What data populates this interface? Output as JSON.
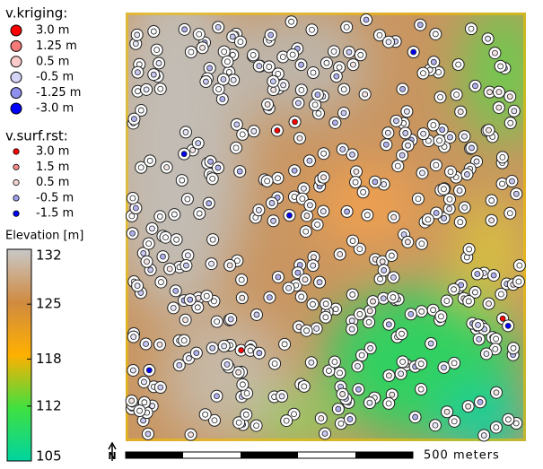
{
  "legends": {
    "kriging": {
      "title": "v.kriging:",
      "items": [
        {
          "label": "3.0 m",
          "color": "#ff0000"
        },
        {
          "label": "1.25 m",
          "color": "#f77a7a"
        },
        {
          "label": "0.5 m",
          "color": "#fbcaca"
        },
        {
          "label": "-0.5 m",
          "color": "#d4d4f6"
        },
        {
          "label": "-1.25 m",
          "color": "#8f8fee"
        },
        {
          "label": "-3.0 m",
          "color": "#0000ff"
        }
      ]
    },
    "surf": {
      "title": "v.surf.rst:",
      "items": [
        {
          "label": "3.0 m",
          "color": "#ff0000"
        },
        {
          "label": "1.5 m",
          "color": "#f48a8a"
        },
        {
          "label": "0.5 m",
          "color": "#f4d4d4"
        },
        {
          "label": "-0.5 m",
          "color": "#a0a0ee"
        },
        {
          "label": "-1.5 m",
          "color": "#0000ff"
        }
      ]
    },
    "elevation": {
      "title": "Elevation [m]",
      "lim": [
        105,
        132
      ],
      "ticks": [
        132,
        125,
        118,
        112,
        105
      ],
      "colors": [
        "#00d4a0",
        "#40e040",
        "#ffb000",
        "#d08a40",
        "#c8c8c8"
      ]
    }
  },
  "scale_bar": {
    "label": "500 meters"
  },
  "north_arrow": {
    "label": "N"
  }
}
